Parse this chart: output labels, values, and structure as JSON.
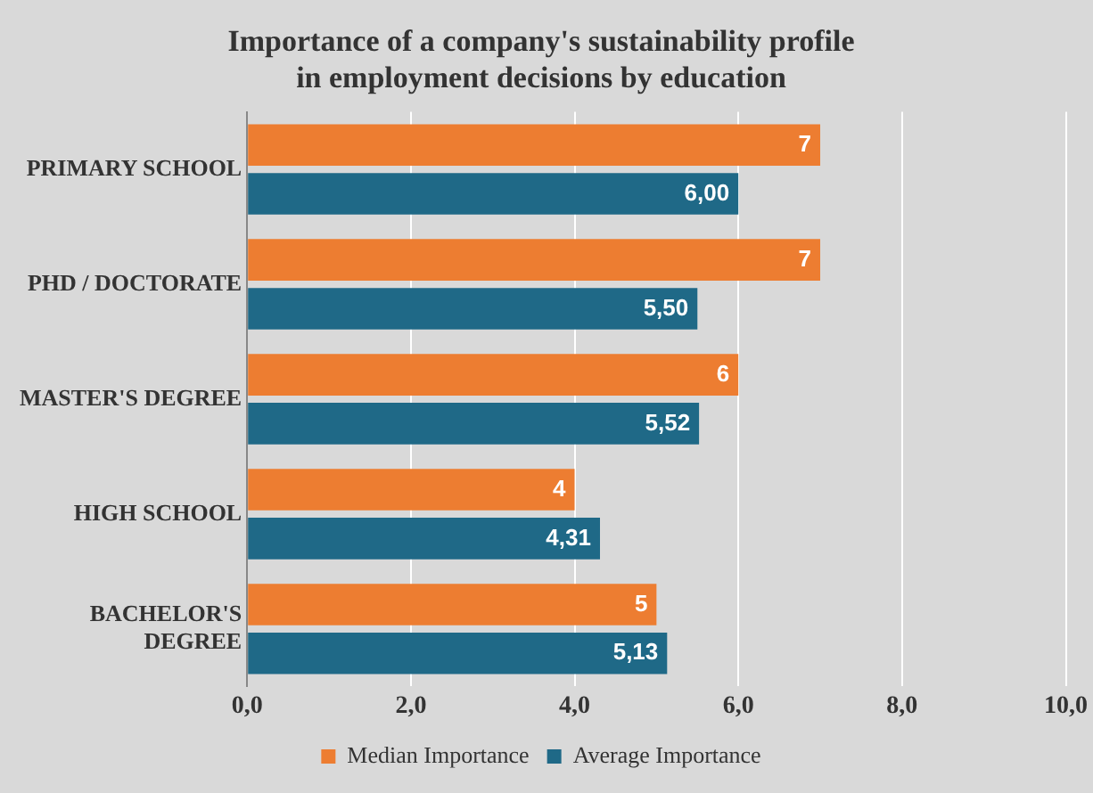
{
  "chart_data": {
    "type": "bar",
    "orientation": "horizontal",
    "title": "Importance of a company's sustainability profile in employment decisions by education",
    "categories": [
      "PRIMARY SCHOOL",
      "PHD / DOCTORATE",
      "MASTER'S DEGREE",
      "HIGH SCHOOL",
      "BACHELOR'S DEGREE"
    ],
    "series": [
      {
        "name": "Median Importance",
        "color": "#ed7d31",
        "values": [
          7,
          7,
          6,
          4,
          5
        ],
        "value_labels": [
          "7",
          "7",
          "6",
          "4",
          "5"
        ]
      },
      {
        "name": "Average Importance",
        "color": "#1f6987",
        "values": [
          6.0,
          5.5,
          5.52,
          4.31,
          5.13
        ],
        "value_labels": [
          "6,00",
          "5,50",
          "5,52",
          "4,31",
          "5,13"
        ]
      }
    ],
    "xlim": [
      0,
      10
    ],
    "xticks": [
      {
        "value": 0,
        "label": "0,0"
      },
      {
        "value": 2,
        "label": "2,0"
      },
      {
        "value": 4,
        "label": "4,0"
      },
      {
        "value": 6,
        "label": "6,0"
      },
      {
        "value": 8,
        "label": "8,0"
      },
      {
        "value": 10,
        "label": "10,0"
      }
    ],
    "grid": "x",
    "legend": "bottom"
  }
}
